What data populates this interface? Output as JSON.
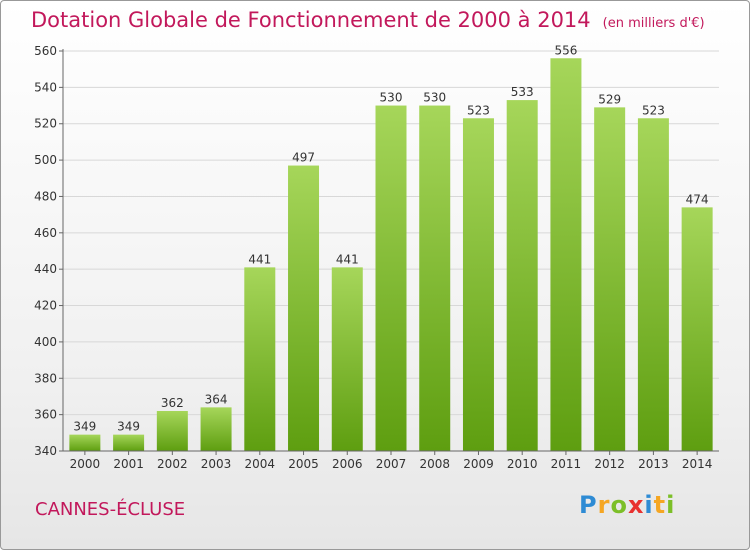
{
  "title": "Dotation Globale de Fonctionnement de 2000 à 2014",
  "unit": "(en milliers d'€)",
  "commune": "CANNES-ÉCLUSE",
  "logo": [
    "P",
    "r",
    "o",
    "x",
    "i",
    "t",
    "i"
  ],
  "logo_colors": [
    "#2e8bd4",
    "#f5a623",
    "#7cbf28",
    "#e8312f",
    "#2e8bd4",
    "#f5a623",
    "#7cbf28"
  ],
  "chart_data": {
    "type": "bar",
    "categories": [
      "2000",
      "2001",
      "2002",
      "2003",
      "2004",
      "2005",
      "2006",
      "2007",
      "2008",
      "2009",
      "2010",
      "2011",
      "2012",
      "2013",
      "2014"
    ],
    "values": [
      349,
      349,
      362,
      364,
      441,
      497,
      441,
      530,
      530,
      523,
      533,
      556,
      529,
      523,
      474
    ],
    "ylim": [
      340,
      560
    ],
    "yticks": [
      340,
      360,
      380,
      400,
      420,
      440,
      460,
      480,
      500,
      520,
      540,
      560
    ],
    "grid": true,
    "bar_color": "#8cc63f"
  }
}
